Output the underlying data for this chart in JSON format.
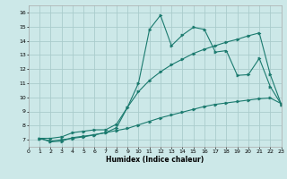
{
  "xlabel": "Humidex (Indice chaleur)",
  "bg_color": "#cce8e8",
  "grid_color": "#aacccc",
  "line_color": "#1a7a6e",
  "xlim": [
    0,
    23
  ],
  "ylim": [
    6.5,
    16.5
  ],
  "xticks": [
    0,
    1,
    2,
    3,
    4,
    5,
    6,
    7,
    8,
    9,
    10,
    11,
    12,
    13,
    14,
    15,
    16,
    17,
    18,
    19,
    20,
    21,
    22,
    23
  ],
  "yticks": [
    7,
    8,
    9,
    10,
    11,
    12,
    13,
    14,
    15,
    16
  ],
  "series1_x": [
    1,
    2,
    3,
    4,
    5,
    6,
    7,
    8,
    9,
    10,
    11,
    12,
    13,
    14,
    15,
    16,
    17,
    18,
    19,
    20,
    21,
    22,
    23
  ],
  "series1_y": [
    7.1,
    6.85,
    6.9,
    7.15,
    7.25,
    7.35,
    7.5,
    7.85,
    9.3,
    11.0,
    14.8,
    15.8,
    13.65,
    14.4,
    14.95,
    14.8,
    13.2,
    13.3,
    11.55,
    11.6,
    12.75,
    10.75,
    9.5
  ],
  "series2_x": [
    1,
    2,
    3,
    4,
    5,
    6,
    7,
    8,
    9,
    10,
    11,
    12,
    13,
    14,
    15,
    16,
    17,
    18,
    19,
    20,
    21,
    22,
    23
  ],
  "series2_y": [
    7.1,
    7.1,
    7.2,
    7.5,
    7.6,
    7.7,
    7.7,
    8.1,
    9.3,
    10.4,
    11.2,
    11.8,
    12.3,
    12.7,
    13.1,
    13.4,
    13.65,
    13.9,
    14.1,
    14.35,
    14.55,
    11.6,
    9.5
  ],
  "series3_x": [
    1,
    2,
    3,
    4,
    5,
    6,
    7,
    8,
    9,
    10,
    11,
    12,
    13,
    14,
    15,
    16,
    17,
    18,
    19,
    20,
    21,
    22,
    23
  ],
  "series3_y": [
    7.1,
    6.9,
    7.0,
    7.1,
    7.2,
    7.35,
    7.5,
    7.65,
    7.8,
    8.05,
    8.3,
    8.55,
    8.75,
    8.95,
    9.15,
    9.35,
    9.5,
    9.6,
    9.7,
    9.8,
    9.9,
    9.95,
    9.55
  ]
}
